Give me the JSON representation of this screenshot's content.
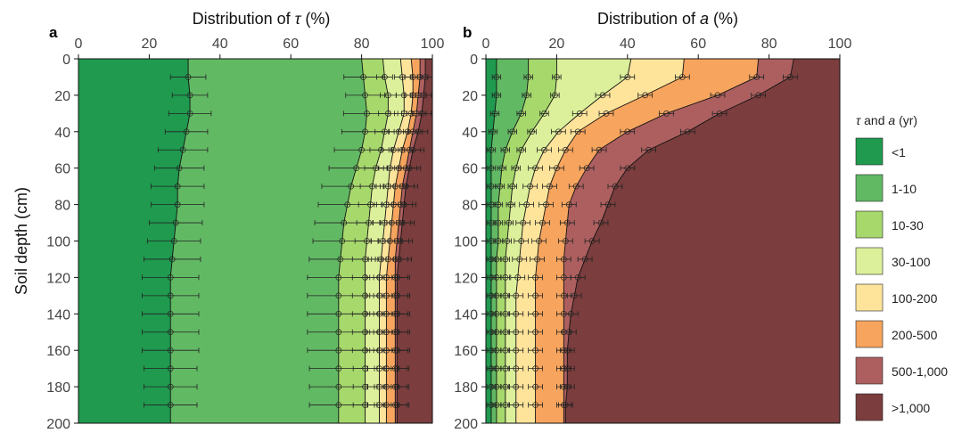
{
  "chart_data": [
    {
      "type": "area",
      "panel": "a",
      "title": "Distribution of τ (%)",
      "title_parts": [
        "Distribution of ",
        "τ",
        " (%)"
      ],
      "xlabel_ticks": [
        0,
        20,
        40,
        60,
        80,
        100
      ],
      "ylabel": "Soil depth (cm)",
      "yticks": [
        0,
        20,
        40,
        60,
        80,
        100,
        120,
        140,
        160,
        180,
        200
      ],
      "xlim": [
        0,
        100
      ],
      "ylim": [
        0,
        200
      ],
      "depth": [
        0,
        10,
        20,
        30,
        40,
        50,
        60,
        70,
        80,
        90,
        100,
        110,
        120,
        130,
        140,
        150,
        160,
        170,
        180,
        190,
        200
      ],
      "boundaries": [
        [
          31,
          31,
          31.5,
          31.5,
          30.5,
          29.5,
          28.5,
          28,
          28,
          27.5,
          27,
          26.5,
          26,
          26,
          26,
          26,
          26,
          26,
          26,
          26,
          26
        ],
        [
          80,
          80.5,
          81,
          81.5,
          81,
          80,
          78.5,
          77,
          76,
          75,
          74.5,
          74,
          73.5,
          73.5,
          73.5,
          73.5,
          73.5,
          73.5,
          73.5,
          73.5,
          73.5
        ],
        [
          86,
          86.5,
          87.5,
          87.5,
          86.5,
          85.5,
          84,
          83,
          82.5,
          82,
          81.5,
          81,
          81,
          81,
          81,
          81,
          81,
          81,
          81,
          81,
          81
        ],
        [
          91,
          91.5,
          92,
          92,
          90.5,
          89,
          88,
          87.5,
          87,
          86.5,
          86,
          85.5,
          85,
          85,
          85,
          85,
          85,
          85,
          85,
          85,
          85
        ],
        [
          94,
          94.5,
          94.5,
          94,
          93,
          91.5,
          90.5,
          89.5,
          89,
          88.5,
          88,
          87.5,
          87,
          87,
          87,
          87,
          87,
          87,
          87,
          87,
          87
        ],
        [
          96.5,
          96.5,
          96,
          95.5,
          94.5,
          93.5,
          92.5,
          91.5,
          91,
          90.5,
          90,
          89.5,
          89.5,
          89.5,
          89.5,
          89.5,
          89.5,
          89.5,
          89.5,
          89.5,
          89.5
        ],
        [
          98,
          98,
          97.5,
          97,
          96,
          94.5,
          93.5,
          92.5,
          92,
          91.5,
          91,
          90.5,
          90,
          90,
          90,
          90,
          90,
          90,
          90,
          90,
          90
        ]
      ],
      "error_bar_depths": [
        10,
        20,
        30,
        40,
        50,
        60,
        70,
        80,
        90,
        100,
        110,
        120,
        130,
        140,
        150,
        160,
        170,
        180,
        190
      ],
      "error_bar_halfwidth": [
        5,
        5,
        6,
        6,
        7,
        7,
        7.5,
        7.5,
        7.5,
        7.5,
        8,
        8,
        8,
        8,
        8,
        8,
        7.5,
        7.5,
        7.5
      ]
    },
    {
      "type": "area",
      "panel": "b",
      "title": "Distribution of a (%)",
      "title_parts": [
        "Distribution of ",
        "a",
        " (%)"
      ],
      "xlabel_ticks": [
        0,
        20,
        40,
        60,
        80,
        100
      ],
      "yticks": [
        0,
        20,
        40,
        60,
        80,
        100,
        120,
        140,
        160,
        180,
        200
      ],
      "xlim": [
        0,
        100
      ],
      "ylim": [
        0,
        200
      ],
      "depth": [
        0,
        10,
        20,
        30,
        40,
        50,
        60,
        70,
        80,
        90,
        100,
        110,
        120,
        130,
        140,
        150,
        160,
        170,
        180,
        190,
        200
      ],
      "boundaries": [
        [
          3,
          3,
          3,
          2.5,
          2,
          1.5,
          1.5,
          1.5,
          1.5,
          1.5,
          1.5,
          1.5,
          1.5,
          1.5,
          1.5,
          1.5,
          1.5,
          1.5,
          1.5,
          1.5,
          1.5
        ],
        [
          12,
          12,
          11.5,
          10,
          7.5,
          5.5,
          4.5,
          4,
          3.5,
          3.5,
          3.5,
          3,
          3,
          3,
          3,
          3,
          3,
          3,
          3,
          3,
          3
        ],
        [
          20,
          20,
          19.5,
          16.5,
          13,
          10,
          8.5,
          7.5,
          7,
          6.5,
          6,
          5.5,
          5.5,
          5.5,
          5.5,
          5.5,
          5.5,
          5.5,
          5.5,
          5.5,
          5.5
        ],
        [
          41,
          40,
          33,
          26.5,
          20.5,
          16.5,
          14,
          12.5,
          11.5,
          10.5,
          10,
          9.5,
          9,
          8.5,
          8.5,
          8.5,
          8.5,
          8.5,
          8.5,
          8.5,
          8.5
        ],
        [
          56,
          55.5,
          45,
          34,
          26,
          22.5,
          20,
          18,
          17,
          16,
          15,
          14.5,
          14,
          14,
          14,
          14,
          14,
          14,
          14,
          14,
          14
        ],
        [
          77,
          76.5,
          65.5,
          51,
          40,
          32,
          28.5,
          25.5,
          23.5,
          23,
          22.5,
          22,
          22,
          22,
          22,
          22,
          22,
          22,
          22,
          22,
          22
        ],
        [
          87,
          86,
          77,
          66,
          57,
          46,
          40,
          36.5,
          34.5,
          32.5,
          30,
          28,
          26,
          25,
          24,
          23.5,
          23,
          23,
          23,
          22.5,
          22.5
        ]
      ],
      "error_bar_depths": [
        10,
        20,
        30,
        40,
        50,
        60,
        70,
        80,
        90,
        100,
        110,
        120,
        130,
        140,
        150,
        160,
        170,
        180,
        190
      ],
      "error_bar_halfwidth": [
        2,
        2,
        2,
        2,
        2,
        2,
        2,
        2,
        2,
        2,
        2,
        2,
        2,
        2,
        2,
        2,
        2,
        2,
        2
      ]
    }
  ],
  "legend": {
    "title_parts": [
      "τ",
      " and ",
      "a",
      " (yr)"
    ],
    "entries": [
      {
        "label": "<1",
        "color": "#1f9a4f"
      },
      {
        "label": "1-10",
        "color": "#62b964"
      },
      {
        "label": "10-30",
        "color": "#a6d86c"
      },
      {
        "label": "30-100",
        "color": "#dcef9a"
      },
      {
        "label": "100-200",
        "color": "#fde49a"
      },
      {
        "label": "200-500",
        "color": "#f6a45e"
      },
      {
        "label": "500-1,000",
        "color": "#ad5f5f"
      },
      {
        "label": ">1,000",
        "color": "#7b3d3d"
      }
    ]
  }
}
